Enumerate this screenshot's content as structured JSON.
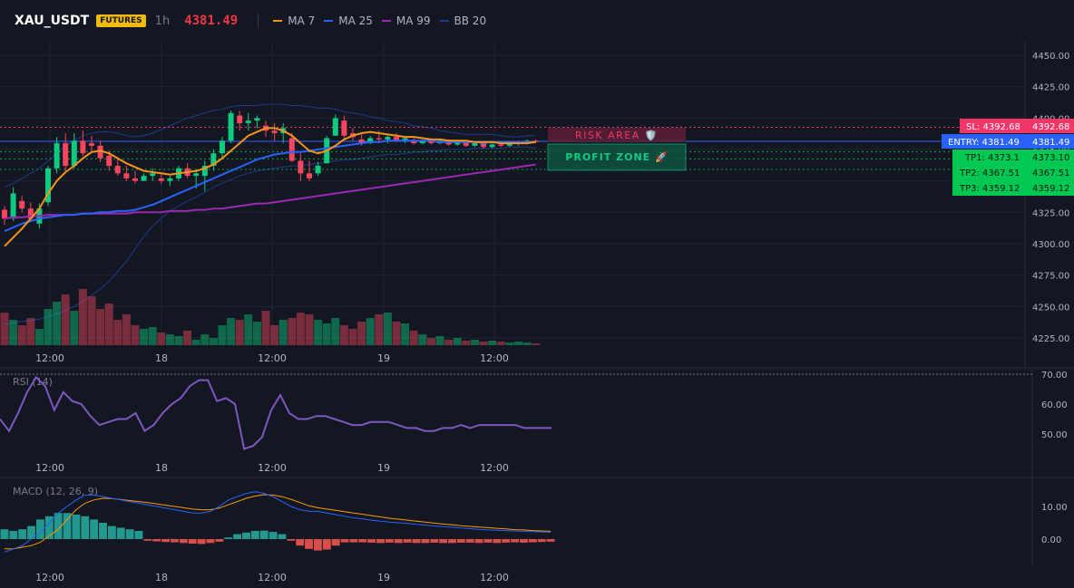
{
  "header": {
    "symbol": "XAU_USDT",
    "badge": "FUTURES",
    "timeframe": "1h",
    "last_price": "4381.49",
    "legend": [
      {
        "label": "MA 7",
        "color": "#f7931a"
      },
      {
        "label": "MA 25",
        "color": "#2962ff"
      },
      {
        "label": "MA 99",
        "color": "#9c27b0"
      },
      {
        "label": "BB 20",
        "color": "#1e3a8a"
      }
    ]
  },
  "colors": {
    "up": "#0ecb81",
    "down": "#f6465d",
    "bg": "#131722",
    "grid": "#1f2430",
    "sl": "#f23668",
    "entry": "#2962ff",
    "tp": "#00c853"
  },
  "levels": {
    "sl": {
      "label": "SL: 4392.68",
      "axis": "4392.68",
      "value": 4392.68
    },
    "entry": {
      "label": "ENTRY: 4381.49",
      "axis": "4381.49",
      "value": 4381.49
    },
    "tp1": {
      "label": "TP1: 4373.1",
      "axis": "4373.10",
      "value": 4373.1
    },
    "tp2": {
      "label": "TP2: 4367.51",
      "axis": "4367.51",
      "value": 4367.51
    },
    "tp3": {
      "label": "TP3: 4359.12",
      "axis": "4359.12",
      "value": 4359.12
    }
  },
  "zones": {
    "risk": "RISK AREA 🛡️",
    "profit": "PROFIT ZONE 🚀"
  },
  "x_labels": [
    "12:00",
    "18",
    "12:00",
    "19",
    "12:00"
  ],
  "chart_data": [
    {
      "type": "candlestick",
      "title": "XAU_USDT 1h",
      "ylim": [
        4218,
        4455
      ],
      "yticks": [
        4225,
        4250,
        4275,
        4300,
        4325,
        4350,
        4375,
        4400,
        4425,
        4450
      ],
      "candles_ohlc": [
        [
          4327,
          4330,
          4315,
          4320
        ],
        [
          4320,
          4345,
          4318,
          4340
        ],
        [
          4334,
          4338,
          4325,
          4328
        ],
        [
          4328,
          4333,
          4318,
          4320
        ],
        [
          4316,
          4332,
          4312,
          4328
        ],
        [
          4333,
          4362,
          4330,
          4360
        ],
        [
          4360,
          4385,
          4356,
          4380
        ],
        [
          4380,
          4388,
          4358,
          4362
        ],
        [
          4362,
          4388,
          4360,
          4382
        ],
        [
          4382,
          4390,
          4370,
          4372
        ],
        [
          4380,
          4386,
          4372,
          4378
        ],
        [
          4378,
          4382,
          4365,
          4368
        ],
        [
          4370,
          4374,
          4358,
          4362
        ],
        [
          4362,
          4368,
          4354,
          4356
        ],
        [
          4356,
          4362,
          4350,
          4352
        ],
        [
          4352,
          4358,
          4348,
          4350
        ],
        [
          4350,
          4356,
          4350,
          4354
        ],
        [
          4354,
          4360,
          4350,
          4356
        ],
        [
          4352,
          4356,
          4348,
          4350
        ],
        [
          4350,
          4354,
          4346,
          4352
        ],
        [
          4352,
          4362,
          4350,
          4360
        ],
        [
          4360,
          4364,
          4352,
          4354
        ],
        [
          4354,
          4358,
          4344,
          4356
        ],
        [
          4354,
          4366,
          4342,
          4362
        ],
        [
          4362,
          4375,
          4358,
          4372
        ],
        [
          4372,
          4385,
          4368,
          4382
        ],
        [
          4382,
          4406,
          4380,
          4404
        ],
        [
          4402,
          4406,
          4390,
          4396
        ],
        [
          4396,
          4404,
          4390,
          4398
        ],
        [
          4398,
          4402,
          4392,
          4400
        ],
        [
          4394,
          4398,
          4385,
          4390
        ],
        [
          4390,
          4396,
          4382,
          4388
        ],
        [
          4388,
          4396,
          4380,
          4392
        ],
        [
          4384,
          4388,
          4365,
          4366
        ],
        [
          4366,
          4372,
          4350,
          4356
        ],
        [
          4356,
          4366,
          4350,
          4352
        ],
        [
          4356,
          4365,
          4354,
          4362
        ],
        [
          4364,
          4386,
          4364,
          4384
        ],
        [
          4386,
          4403,
          4386,
          4400
        ],
        [
          4398,
          4402,
          4384,
          4386
        ],
        [
          4388,
          4392,
          4382,
          4385
        ],
        [
          4383,
          4387,
          4378,
          4380
        ],
        [
          4380,
          4386,
          4379,
          4384
        ],
        [
          4384,
          4390,
          4380,
          4383
        ],
        [
          4383,
          4386,
          4380,
          4385
        ],
        [
          4385,
          4388,
          4381,
          4382
        ],
        [
          4382,
          4385,
          4380,
          4384
        ],
        [
          4382,
          4384,
          4379,
          4380
        ],
        [
          4380,
          4383,
          4379,
          4382
        ],
        [
          4382,
          4384,
          4379,
          4380
        ],
        [
          4380,
          4383,
          4379,
          4382
        ],
        [
          4382,
          4383,
          4378,
          4379
        ],
        [
          4379,
          4382,
          4378,
          4381
        ],
        [
          4381,
          4382,
          4377,
          4378
        ],
        [
          4378,
          4381,
          4377,
          4380
        ],
        [
          4380,
          4381,
          4376,
          4377
        ],
        [
          4377,
          4380,
          4376,
          4379
        ],
        [
          4379,
          4381,
          4377,
          4378
        ],
        [
          4378,
          4381,
          4377,
          4380
        ],
        [
          4380,
          4382,
          4378,
          4381
        ],
        [
          4381,
          4383,
          4379,
          4382
        ],
        [
          4382,
          4383,
          4380,
          4381
        ]
      ],
      "volume": [
        36,
        28,
        22,
        30,
        18,
        40,
        48,
        56,
        38,
        62,
        54,
        40,
        46,
        28,
        34,
        22,
        18,
        20,
        14,
        12,
        10,
        16,
        6,
        12,
        8,
        22,
        30,
        28,
        34,
        26,
        38,
        22,
        28,
        30,
        36,
        34,
        28,
        24,
        30,
        22,
        18,
        26,
        30,
        34,
        36,
        26,
        24,
        16,
        12,
        8,
        10,
        6,
        8,
        5,
        6,
        4,
        5,
        4,
        3,
        4,
        3,
        2
      ],
      "volume_ylim": [
        0,
        70
      ],
      "ma7": [
        4298,
        4305,
        4312,
        4320,
        4328,
        4340,
        4350,
        4357,
        4362,
        4368,
        4373,
        4374,
        4372,
        4368,
        4364,
        4361,
        4358,
        4357,
        4356,
        4355,
        4356,
        4357,
        4358,
        4360,
        4363,
        4368,
        4374,
        4380,
        4386,
        4389,
        4392,
        4392,
        4390,
        4386,
        4380,
        4374,
        4372,
        4374,
        4378,
        4383,
        4386,
        4388,
        4389,
        4388,
        4387,
        4386,
        4385,
        4385,
        4384,
        4383,
        4383,
        4382,
        4382,
        4382,
        4381,
        4381,
        4381,
        4380,
        4380,
        4380,
        4380,
        4381
      ],
      "ma25": [
        4310,
        4313,
        4316,
        4318,
        4320,
        4321,
        4322,
        4323,
        4323,
        4324,
        4324,
        4325,
        4325,
        4326,
        4326,
        4327,
        4329,
        4331,
        4334,
        4337,
        4340,
        4343,
        4346,
        4349,
        4352,
        4355,
        4358,
        4361,
        4364,
        4367,
        4369,
        4371,
        4372,
        4373,
        4373,
        4374,
        4375,
        4376,
        4377,
        4378,
        4379,
        4380,
        4381,
        4381,
        4382,
        4382,
        4382,
        4382,
        4382,
        4382,
        4381,
        4381,
        4381,
        4381,
        4381,
        4380,
        4381,
        4381,
        4381,
        4381,
        4381,
        4381
      ],
      "ma99": [
        4320,
        4321,
        4321,
        4322,
        4322,
        4323,
        4323,
        4323,
        4323,
        4324,
        4324,
        4324,
        4324,
        4324,
        4324,
        4325,
        4325,
        4325,
        4325,
        4326,
        4326,
        4326,
        4327,
        4327,
        4328,
        4328,
        4329,
        4330,
        4331,
        4332,
        4332,
        4333,
        4334,
        4335,
        4336,
        4337,
        4338,
        4339,
        4340,
        4341,
        4342,
        4343,
        4344,
        4345,
        4346,
        4347,
        4348,
        4349,
        4350,
        4351,
        4352,
        4353,
        4354,
        4355,
        4356,
        4357,
        4358,
        4359,
        4360,
        4361,
        4362,
        4363
      ],
      "bb_upper": [
        4345,
        4348,
        4352,
        4356,
        4360,
        4366,
        4372,
        4378,
        4382,
        4386,
        4388,
        4389,
        4389,
        4388,
        4386,
        4385,
        4386,
        4388,
        4391,
        4394,
        4397,
        4400,
        4402,
        4404,
        4406,
        4407,
        4409,
        4410,
        4410,
        4410,
        4411,
        4411,
        4411,
        4410,
        4410,
        4409,
        4408,
        4408,
        4407,
        4405,
        4404,
        4403,
        4401,
        4400,
        4398,
        4397,
        4396,
        4394,
        4393,
        4392,
        4390,
        4389,
        4388,
        4387,
        4387,
        4387,
        4387,
        4386,
        4385,
        4385,
        4386,
        4386
      ],
      "bb_lower": [
        4236,
        4237,
        4238,
        4239,
        4240,
        4242,
        4244,
        4247,
        4250,
        4254,
        4259,
        4264,
        4270,
        4278,
        4286,
        4296,
        4306,
        4314,
        4320,
        4326,
        4330,
        4334,
        4337,
        4341,
        4345,
        4348,
        4351,
        4354,
        4356,
        4358,
        4359,
        4360,
        4361,
        4362,
        4362,
        4363,
        4364,
        4365,
        4366,
        4367,
        4367,
        4368,
        4369,
        4370,
        4371,
        4371,
        4372,
        4373,
        4373,
        4374,
        4374,
        4375,
        4375,
        4375,
        4376,
        4376,
        4376,
        4376,
        4377,
        4377,
        4377,
        4376
      ]
    },
    {
      "type": "line",
      "title": "RSI (14)",
      "ylim": [
        42,
        74
      ],
      "yticks": [
        50,
        60,
        70
      ],
      "y": [
        55,
        51,
        57,
        64,
        69,
        66,
        58,
        64,
        61,
        60,
        56,
        53,
        54,
        55,
        55,
        57,
        51,
        53,
        57,
        60,
        62,
        66,
        68,
        68,
        61,
        62,
        60,
        45,
        46,
        49,
        58,
        63,
        57,
        55,
        55,
        56,
        56,
        55,
        54,
        53,
        53,
        54,
        54,
        54,
        53,
        52,
        52,
        51,
        51,
        52,
        52,
        53,
        52,
        53,
        53,
        53,
        53,
        53,
        52,
        52,
        52,
        52
      ]
    },
    {
      "type": "line",
      "title": "MACD (12, 26, 9)",
      "ylim": [
        -8,
        19
      ],
      "yticks": [
        0,
        10
      ],
      "series": [
        {
          "name": "MACD",
          "color": "#2962ff",
          "values": [
            -4,
            -3,
            -2,
            0,
            2,
            5,
            8,
            10,
            12,
            13.5,
            13.5,
            13,
            12.5,
            12,
            11.5,
            11,
            10.5,
            10,
            9.5,
            9,
            8.5,
            8,
            8,
            8.5,
            10,
            12,
            13,
            14,
            14.5,
            14,
            13,
            11.5,
            10,
            9,
            8.5,
            8.5,
            8,
            7.5,
            7,
            6.5,
            6.2,
            5.8,
            5.5,
            5.2,
            5,
            4.8,
            4.5,
            4.3,
            4,
            3.8,
            3.6,
            3.4,
            3.2,
            3,
            2.8,
            2.7,
            2.6,
            2.5,
            2.4,
            2.3,
            2.2,
            2.1
          ]
        },
        {
          "name": "Signal",
          "color": "#ff9800",
          "values": [
            -3,
            -3,
            -2.5,
            -2,
            -1,
            1,
            3,
            6,
            9,
            11,
            12,
            12.5,
            12.4,
            12.1,
            11.8,
            11.5,
            11.2,
            10.8,
            10.4,
            10,
            9.6,
            9.2,
            9,
            9,
            9.5,
            10.5,
            11.5,
            12.5,
            13.2,
            13.6,
            13.5,
            13,
            12.2,
            11.2,
            10.2,
            9.6,
            9.2,
            8.8,
            8.4,
            8,
            7.6,
            7.2,
            6.8,
            6.4,
            6.1,
            5.8,
            5.5,
            5.2,
            4.9,
            4.6,
            4.4,
            4.1,
            3.9,
            3.7,
            3.5,
            3.3,
            3.1,
            2.9,
            2.8,
            2.6,
            2.5,
            2.4
          ]
        },
        {
          "name": "Histogram",
          "values": [
            3,
            2.5,
            3,
            4,
            6,
            7,
            8,
            8,
            7.5,
            7,
            6,
            5,
            4,
            3.5,
            3,
            2.5,
            -0.5,
            -0.7,
            -0.9,
            -1,
            -1.2,
            -1.4,
            -1.5,
            -1.2,
            -0.8,
            0.5,
            1.5,
            2,
            2.5,
            2.6,
            2.2,
            1.5,
            -0.5,
            -2,
            -3,
            -3.5,
            -3.2,
            -2,
            -1,
            -1,
            -1,
            -1.1,
            -1.2,
            -1.1,
            -1.2,
            -1.1,
            -1.2,
            -1.2,
            -1.1,
            -1.2,
            -1.2,
            -1.1,
            -1.1,
            -1.2,
            -1.1,
            -1.2,
            -1.1,
            -1,
            -1.1,
            -1,
            -0.9,
            -0.8
          ]
        }
      ]
    }
  ]
}
